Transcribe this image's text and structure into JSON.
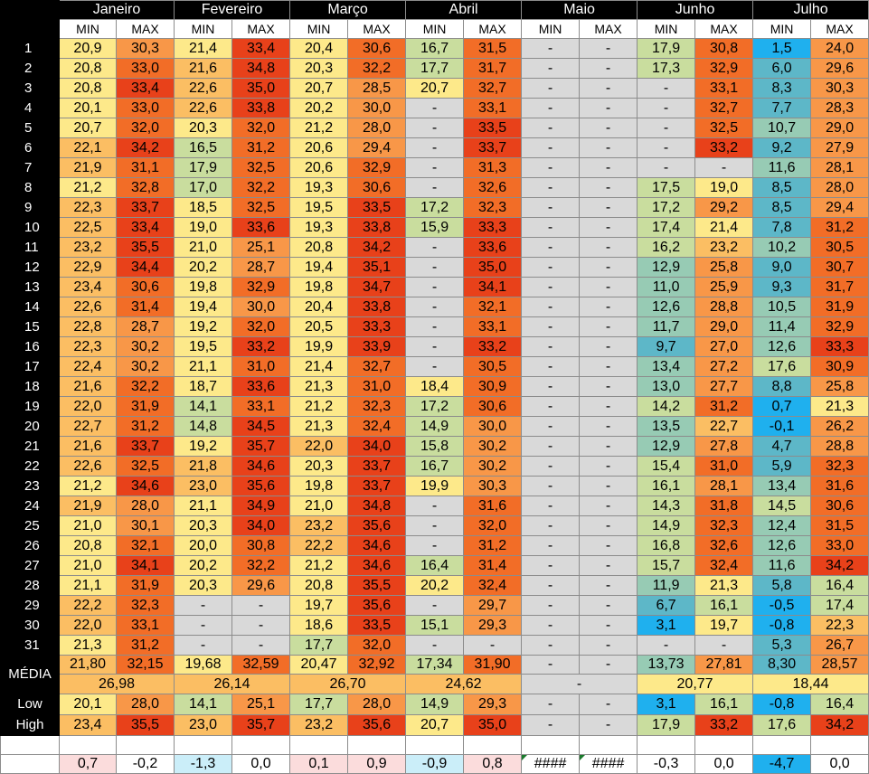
{
  "months": [
    "Janeiro",
    "Fevereiro",
    "Março",
    "Abril",
    "Maio",
    "Junho",
    "Julho"
  ],
  "sub_headers": [
    "MIN",
    "MAX"
  ],
  "days": [
    "1",
    "2",
    "3",
    "4",
    "5",
    "6",
    "7",
    "8",
    "9",
    "10",
    "11",
    "12",
    "13",
    "14",
    "15",
    "16",
    "17",
    "18",
    "19",
    "20",
    "21",
    "22",
    "23",
    "24",
    "25",
    "26",
    "27",
    "28",
    "29",
    "30",
    "31"
  ],
  "data": [
    [
      "20,9",
      "30,3",
      "21,4",
      "33,4",
      "20,4",
      "30,6",
      "16,7",
      "31,5",
      "-",
      "-",
      "17,9",
      "30,8",
      "1,5",
      "24,0"
    ],
    [
      "20,8",
      "33,0",
      "21,6",
      "34,8",
      "20,3",
      "32,2",
      "17,7",
      "31,7",
      "-",
      "-",
      "17,3",
      "32,9",
      "6,0",
      "29,6"
    ],
    [
      "20,8",
      "33,4",
      "22,6",
      "35,0",
      "20,7",
      "28,5",
      "20,7",
      "32,7",
      "-",
      "-",
      "-",
      "33,1",
      "8,3",
      "30,3"
    ],
    [
      "20,1",
      "33,0",
      "22,6",
      "33,8",
      "20,2",
      "30,0",
      "-",
      "33,1",
      "-",
      "-",
      "-",
      "32,7",
      "7,7",
      "28,3"
    ],
    [
      "20,7",
      "32,0",
      "20,3",
      "32,0",
      "21,2",
      "28,0",
      "-",
      "33,5",
      "-",
      "-",
      "-",
      "32,5",
      "10,7",
      "29,0"
    ],
    [
      "22,1",
      "34,2",
      "16,5",
      "31,2",
      "20,6",
      "29,4",
      "-",
      "33,7",
      "-",
      "-",
      "-",
      "33,2",
      "9,2",
      "27,9"
    ],
    [
      "21,9",
      "31,1",
      "17,9",
      "32,5",
      "20,6",
      "32,9",
      "-",
      "31,3",
      "-",
      "-",
      "-",
      "-",
      "11,6",
      "28,1"
    ],
    [
      "21,2",
      "32,8",
      "17,0",
      "32,2",
      "19,3",
      "30,6",
      "-",
      "32,6",
      "-",
      "-",
      "17,5",
      "19,0",
      "8,5",
      "28,0"
    ],
    [
      "22,3",
      "33,7",
      "18,5",
      "32,5",
      "19,5",
      "33,5",
      "17,2",
      "32,3",
      "-",
      "-",
      "17,2",
      "29,2",
      "8,5",
      "29,4"
    ],
    [
      "22,5",
      "33,4",
      "19,0",
      "33,6",
      "19,3",
      "33,8",
      "15,9",
      "33,3",
      "-",
      "-",
      "17,4",
      "21,4",
      "7,8",
      "31,2"
    ],
    [
      "23,2",
      "35,5",
      "21,0",
      "25,1",
      "20,8",
      "34,2",
      "-",
      "33,6",
      "-",
      "-",
      "16,2",
      "23,2",
      "10,2",
      "30,5"
    ],
    [
      "22,9",
      "34,4",
      "20,2",
      "28,7",
      "19,4",
      "35,1",
      "-",
      "35,0",
      "-",
      "-",
      "12,9",
      "25,8",
      "9,0",
      "30,7"
    ],
    [
      "23,4",
      "30,6",
      "19,8",
      "32,9",
      "19,8",
      "34,7",
      "-",
      "34,1",
      "-",
      "-",
      "11,0",
      "25,9",
      "9,3",
      "31,7"
    ],
    [
      "22,6",
      "31,4",
      "19,4",
      "30,0",
      "20,4",
      "33,8",
      "-",
      "32,1",
      "-",
      "-",
      "12,6",
      "28,8",
      "10,5",
      "31,9"
    ],
    [
      "22,8",
      "28,7",
      "19,2",
      "32,0",
      "20,5",
      "33,3",
      "-",
      "33,1",
      "-",
      "-",
      "11,7",
      "29,0",
      "11,4",
      "32,9"
    ],
    [
      "22,3",
      "30,2",
      "19,5",
      "33,2",
      "19,9",
      "33,9",
      "-",
      "33,2",
      "-",
      "-",
      "9,7",
      "27,0",
      "12,6",
      "33,3"
    ],
    [
      "22,4",
      "30,2",
      "21,1",
      "31,0",
      "21,4",
      "32,7",
      "-",
      "30,5",
      "-",
      "-",
      "13,4",
      "27,2",
      "17,6",
      "30,9"
    ],
    [
      "21,6",
      "32,2",
      "18,7",
      "33,6",
      "21,3",
      "31,0",
      "18,4",
      "30,9",
      "-",
      "-",
      "13,0",
      "27,7",
      "8,8",
      "25,8"
    ],
    [
      "22,0",
      "31,9",
      "14,1",
      "33,1",
      "21,2",
      "32,3",
      "17,2",
      "30,6",
      "-",
      "-",
      "14,2",
      "31,2",
      "0,7",
      "21,3"
    ],
    [
      "22,7",
      "31,2",
      "14,8",
      "34,5",
      "21,3",
      "32,4",
      "14,9",
      "30,0",
      "-",
      "-",
      "13,5",
      "22,7",
      "-0,1",
      "26,2"
    ],
    [
      "21,6",
      "33,7",
      "19,2",
      "35,7",
      "22,0",
      "34,0",
      "15,8",
      "30,2",
      "-",
      "-",
      "12,9",
      "27,8",
      "4,7",
      "28,8"
    ],
    [
      "22,6",
      "32,5",
      "21,8",
      "34,6",
      "20,3",
      "33,7",
      "16,7",
      "30,2",
      "-",
      "-",
      "15,4",
      "31,0",
      "5,9",
      "32,3"
    ],
    [
      "21,2",
      "34,6",
      "23,0",
      "35,6",
      "19,8",
      "33,7",
      "19,9",
      "30,3",
      "-",
      "-",
      "16,1",
      "28,1",
      "13,4",
      "31,6"
    ],
    [
      "21,9",
      "28,0",
      "21,1",
      "34,9",
      "21,0",
      "34,8",
      "-",
      "31,6",
      "-",
      "-",
      "14,3",
      "31,8",
      "14,5",
      "30,6"
    ],
    [
      "21,0",
      "30,1",
      "20,3",
      "34,0",
      "23,2",
      "35,6",
      "-",
      "32,0",
      "-",
      "-",
      "14,9",
      "32,3",
      "12,4",
      "31,5"
    ],
    [
      "20,8",
      "32,1",
      "20,0",
      "30,8",
      "22,2",
      "34,6",
      "-",
      "31,2",
      "-",
      "-",
      "16,8",
      "32,6",
      "12,6",
      "33,0"
    ],
    [
      "21,0",
      "34,1",
      "20,2",
      "32,2",
      "21,2",
      "34,6",
      "16,4",
      "31,4",
      "-",
      "-",
      "15,7",
      "32,4",
      "11,6",
      "34,2"
    ],
    [
      "21,1",
      "31,9",
      "20,3",
      "29,6",
      "20,8",
      "35,5",
      "20,2",
      "32,4",
      "-",
      "-",
      "11,9",
      "21,3",
      "5,8",
      "16,4"
    ],
    [
      "22,2",
      "32,3",
      "-",
      "-",
      "19,7",
      "35,6",
      "-",
      "29,7",
      "-",
      "-",
      "6,7",
      "16,1",
      "-0,5",
      "17,4"
    ],
    [
      "22,0",
      "33,1",
      "-",
      "-",
      "18,6",
      "33,5",
      "15,1",
      "29,3",
      "-",
      "-",
      "3,1",
      "19,7",
      "-0,8",
      "22,3"
    ],
    [
      "21,3",
      "31,2",
      "-",
      "-",
      "17,7",
      "32,0",
      "-",
      "-",
      "-",
      "-",
      "-",
      "-",
      "5,3",
      "26,7"
    ]
  ],
  "labels": {
    "media": "MÉDIA",
    "low": "Low",
    "high": "High"
  },
  "media_row": [
    "21,80",
    "32,15",
    "19,68",
    "32,59",
    "20,47",
    "32,92",
    "17,34",
    "31,90",
    "-",
    "-",
    "13,73",
    "27,81",
    "8,30",
    "28,57"
  ],
  "media_month": [
    "26,98",
    "26,14",
    "26,70",
    "24,62",
    "-",
    "20,77",
    "18,44"
  ],
  "low_row": [
    "20,1",
    "28,0",
    "14,1",
    "25,1",
    "17,7",
    "28,0",
    "14,9",
    "29,3",
    "-",
    "-",
    "3,1",
    "16,1",
    "-0,8",
    "16,4"
  ],
  "high_row": [
    "23,4",
    "35,5",
    "23,0",
    "35,7",
    "23,2",
    "35,6",
    "20,7",
    "35,0",
    "-",
    "-",
    "17,9",
    "33,2",
    "17,6",
    "34,2"
  ],
  "diff_row": [
    "0,7",
    "-0,2",
    "-1,3",
    "0,0",
    "0,1",
    "0,9",
    "-0,9",
    "0,8",
    "####",
    "####",
    "-0,3",
    "0,0",
    "-4,7",
    "0,0"
  ],
  "colors": {
    "empty": "#d9d9d9",
    "scale": [
      "#1fb0ee",
      "#5db7c8",
      "#97cbb4",
      "#c9dd9e",
      "#fde98a",
      "#fbbe63",
      "#f89748",
      "#f26d27",
      "#e8411a"
    ],
    "diff_pos": "#fbdcdc",
    "diff_neg": "#cbeef9",
    "diff_neg_strong": "#1fb0ee"
  }
}
